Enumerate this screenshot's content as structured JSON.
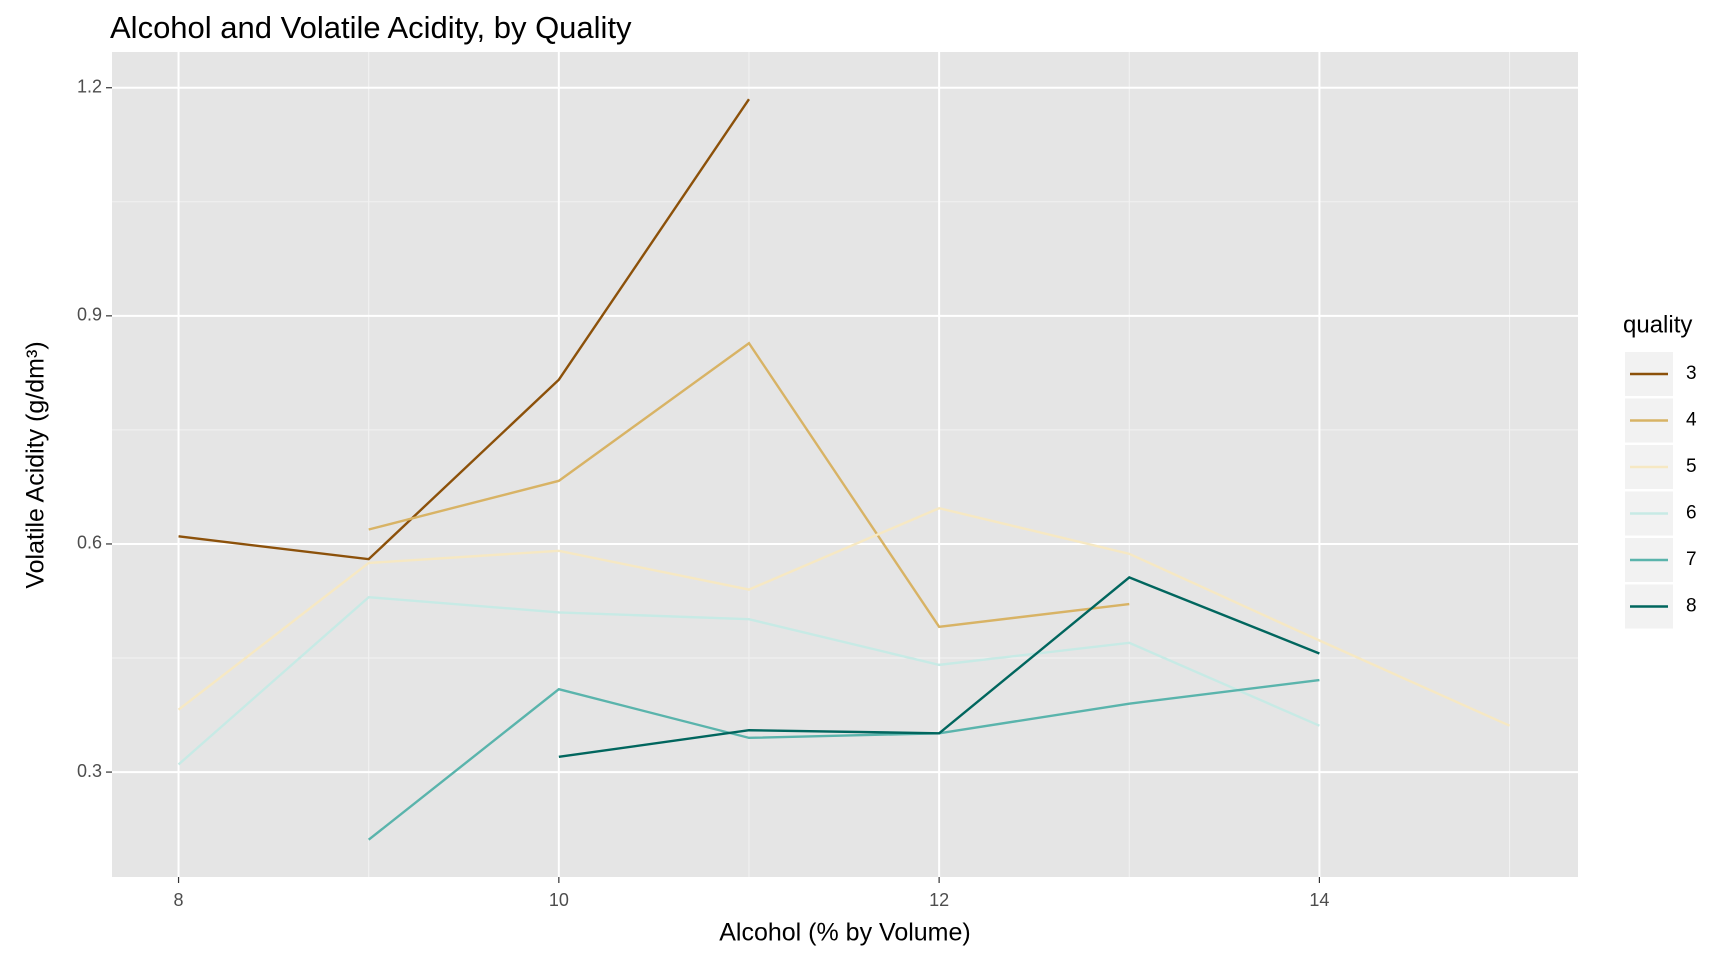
{
  "chart_data": {
    "type": "line",
    "title": "Alcohol and Volatile Acidity, by Quality",
    "x_label": "Alcohol (% by Volume)",
    "y_label": "Volatile Acidity (g/dm³)",
    "legend_title": "quality",
    "legend_position": "right",
    "grid": true,
    "x": [
      8,
      9,
      10,
      11,
      12,
      13,
      14,
      15
    ],
    "series": [
      {
        "name": "3",
        "color": "#8c510a",
        "values": [
          0.61,
          0.58,
          0.816,
          1.185,
          null,
          null,
          null,
          null
        ]
      },
      {
        "name": "4",
        "color": "#d8b365",
        "values": [
          null,
          0.619,
          0.683,
          0.864,
          0.491,
          0.521,
          null,
          null
        ]
      },
      {
        "name": "5",
        "color": "#f6e8c3",
        "values": [
          0.382,
          0.575,
          0.591,
          0.54,
          0.647,
          0.587,
          0.473,
          0.361
        ]
      },
      {
        "name": "6",
        "color": "#c7eae5",
        "values": [
          0.31,
          0.53,
          0.51,
          0.501,
          0.441,
          0.47,
          0.361,
          null
        ]
      },
      {
        "name": "7",
        "color": "#5ab4ac",
        "values": [
          null,
          0.211,
          0.409,
          0.345,
          0.351,
          0.39,
          0.421,
          null
        ]
      },
      {
        "name": "8",
        "color": "#01665e",
        "values": [
          null,
          null,
          0.32,
          0.355,
          0.351,
          0.556,
          0.456,
          null
        ]
      }
    ],
    "xlim": [
      7.65,
      15.36
    ],
    "xticks": [
      8,
      10,
      12,
      14
    ],
    "ylim": [
      0.162,
      1.247
    ],
    "yticks": [
      0.3,
      0.6,
      0.9,
      1.2
    ]
  }
}
